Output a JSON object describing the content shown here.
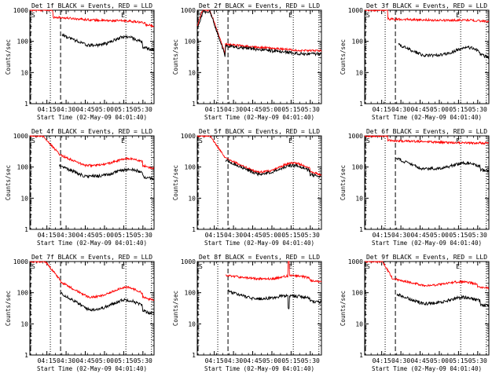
{
  "chart_data": {
    "type": "line",
    "panels": [
      {
        "title": "Det 1f BLACK = Events, RED = LLD",
        "profile": "d1"
      },
      {
        "title": "Det 2f BLACK = Events, RED = LLD",
        "profile": "d2"
      },
      {
        "title": "Det 3f BLACK = Events, RED = LLD",
        "profile": "d3"
      },
      {
        "title": "Det 4f BLACK = Events, RED = LLD",
        "profile": "d4"
      },
      {
        "title": "Det 5f BLACK = Events, RED = LLD",
        "profile": "d5"
      },
      {
        "title": "Det 6f BLACK = Events, RED = LLD",
        "profile": "d6"
      },
      {
        "title": "Det 7f BLACK = Events, RED = LLD",
        "profile": "d7"
      },
      {
        "title": "Det 8f BLACK = Events, RED = LLD",
        "profile": "d8"
      },
      {
        "title": "Det 9f BLACK = Events, RED = LLD",
        "profile": "d9"
      }
    ],
    "xlabel": "Start Time (02-May-09 04:01:40)",
    "ylabel": "Counts/sec",
    "x_ticks": [
      "04:15",
      "04:30",
      "04:45",
      "05:00",
      "05:15",
      "05:30"
    ],
    "y_ticks": [
      "1",
      "10",
      "100",
      "1000"
    ],
    "y_scale": "log",
    "ylim": [
      1,
      1000
    ],
    "xlim_minutes": [
      0,
      97
    ],
    "x_tick_minutes": [
      13.3,
      28.3,
      43.3,
      58.3,
      73.3,
      88.3
    ],
    "markers": {
      "S_label": "S",
      "E_label": "E",
      "dotted_minutes": [
        16,
        75,
        95
      ],
      "dashed_minutes": [
        24
      ]
    },
    "series_colors": {
      "events": "#000000",
      "lld": "#ff0000"
    },
    "series_names": {
      "events": "BLACK = Events",
      "lld": "RED = LLD"
    }
  }
}
